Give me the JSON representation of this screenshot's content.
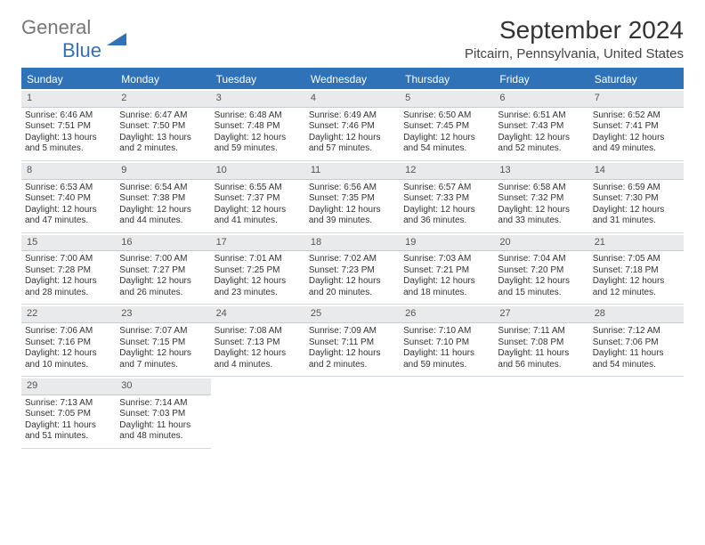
{
  "brand": {
    "line1": "General",
    "line2": "Blue",
    "accent": "#2f72b8",
    "text_color": "#777"
  },
  "title": {
    "month": "September 2024",
    "location": "Pitcairn, Pennsylvania, United States"
  },
  "layout": {
    "weeks": 5,
    "cols": 7
  },
  "colors": {
    "header_bg": "#2f72b8",
    "daynum_bg": "#e8eaec",
    "border": "#c6ccd2"
  },
  "daynames": [
    "Sunday",
    "Monday",
    "Tuesday",
    "Wednesday",
    "Thursday",
    "Friday",
    "Saturday"
  ],
  "days": [
    {
      "n": "1",
      "sunrise": "Sunrise: 6:46 AM",
      "sunset": "Sunset: 7:51 PM",
      "daylight": "Daylight: 13 hours and 5 minutes."
    },
    {
      "n": "2",
      "sunrise": "Sunrise: 6:47 AM",
      "sunset": "Sunset: 7:50 PM",
      "daylight": "Daylight: 13 hours and 2 minutes."
    },
    {
      "n": "3",
      "sunrise": "Sunrise: 6:48 AM",
      "sunset": "Sunset: 7:48 PM",
      "daylight": "Daylight: 12 hours and 59 minutes."
    },
    {
      "n": "4",
      "sunrise": "Sunrise: 6:49 AM",
      "sunset": "Sunset: 7:46 PM",
      "daylight": "Daylight: 12 hours and 57 minutes."
    },
    {
      "n": "5",
      "sunrise": "Sunrise: 6:50 AM",
      "sunset": "Sunset: 7:45 PM",
      "daylight": "Daylight: 12 hours and 54 minutes."
    },
    {
      "n": "6",
      "sunrise": "Sunrise: 6:51 AM",
      "sunset": "Sunset: 7:43 PM",
      "daylight": "Daylight: 12 hours and 52 minutes."
    },
    {
      "n": "7",
      "sunrise": "Sunrise: 6:52 AM",
      "sunset": "Sunset: 7:41 PM",
      "daylight": "Daylight: 12 hours and 49 minutes."
    },
    {
      "n": "8",
      "sunrise": "Sunrise: 6:53 AM",
      "sunset": "Sunset: 7:40 PM",
      "daylight": "Daylight: 12 hours and 47 minutes."
    },
    {
      "n": "9",
      "sunrise": "Sunrise: 6:54 AM",
      "sunset": "Sunset: 7:38 PM",
      "daylight": "Daylight: 12 hours and 44 minutes."
    },
    {
      "n": "10",
      "sunrise": "Sunrise: 6:55 AM",
      "sunset": "Sunset: 7:37 PM",
      "daylight": "Daylight: 12 hours and 41 minutes."
    },
    {
      "n": "11",
      "sunrise": "Sunrise: 6:56 AM",
      "sunset": "Sunset: 7:35 PM",
      "daylight": "Daylight: 12 hours and 39 minutes."
    },
    {
      "n": "12",
      "sunrise": "Sunrise: 6:57 AM",
      "sunset": "Sunset: 7:33 PM",
      "daylight": "Daylight: 12 hours and 36 minutes."
    },
    {
      "n": "13",
      "sunrise": "Sunrise: 6:58 AM",
      "sunset": "Sunset: 7:32 PM",
      "daylight": "Daylight: 12 hours and 33 minutes."
    },
    {
      "n": "14",
      "sunrise": "Sunrise: 6:59 AM",
      "sunset": "Sunset: 7:30 PM",
      "daylight": "Daylight: 12 hours and 31 minutes."
    },
    {
      "n": "15",
      "sunrise": "Sunrise: 7:00 AM",
      "sunset": "Sunset: 7:28 PM",
      "daylight": "Daylight: 12 hours and 28 minutes."
    },
    {
      "n": "16",
      "sunrise": "Sunrise: 7:00 AM",
      "sunset": "Sunset: 7:27 PM",
      "daylight": "Daylight: 12 hours and 26 minutes."
    },
    {
      "n": "17",
      "sunrise": "Sunrise: 7:01 AM",
      "sunset": "Sunset: 7:25 PM",
      "daylight": "Daylight: 12 hours and 23 minutes."
    },
    {
      "n": "18",
      "sunrise": "Sunrise: 7:02 AM",
      "sunset": "Sunset: 7:23 PM",
      "daylight": "Daylight: 12 hours and 20 minutes."
    },
    {
      "n": "19",
      "sunrise": "Sunrise: 7:03 AM",
      "sunset": "Sunset: 7:21 PM",
      "daylight": "Daylight: 12 hours and 18 minutes."
    },
    {
      "n": "20",
      "sunrise": "Sunrise: 7:04 AM",
      "sunset": "Sunset: 7:20 PM",
      "daylight": "Daylight: 12 hours and 15 minutes."
    },
    {
      "n": "21",
      "sunrise": "Sunrise: 7:05 AM",
      "sunset": "Sunset: 7:18 PM",
      "daylight": "Daylight: 12 hours and 12 minutes."
    },
    {
      "n": "22",
      "sunrise": "Sunrise: 7:06 AM",
      "sunset": "Sunset: 7:16 PM",
      "daylight": "Daylight: 12 hours and 10 minutes."
    },
    {
      "n": "23",
      "sunrise": "Sunrise: 7:07 AM",
      "sunset": "Sunset: 7:15 PM",
      "daylight": "Daylight: 12 hours and 7 minutes."
    },
    {
      "n": "24",
      "sunrise": "Sunrise: 7:08 AM",
      "sunset": "Sunset: 7:13 PM",
      "daylight": "Daylight: 12 hours and 4 minutes."
    },
    {
      "n": "25",
      "sunrise": "Sunrise: 7:09 AM",
      "sunset": "Sunset: 7:11 PM",
      "daylight": "Daylight: 12 hours and 2 minutes."
    },
    {
      "n": "26",
      "sunrise": "Sunrise: 7:10 AM",
      "sunset": "Sunset: 7:10 PM",
      "daylight": "Daylight: 11 hours and 59 minutes."
    },
    {
      "n": "27",
      "sunrise": "Sunrise: 7:11 AM",
      "sunset": "Sunset: 7:08 PM",
      "daylight": "Daylight: 11 hours and 56 minutes."
    },
    {
      "n": "28",
      "sunrise": "Sunrise: 7:12 AM",
      "sunset": "Sunset: 7:06 PM",
      "daylight": "Daylight: 11 hours and 54 minutes."
    },
    {
      "n": "29",
      "sunrise": "Sunrise: 7:13 AM",
      "sunset": "Sunset: 7:05 PM",
      "daylight": "Daylight: 11 hours and 51 minutes."
    },
    {
      "n": "30",
      "sunrise": "Sunrise: 7:14 AM",
      "sunset": "Sunset: 7:03 PM",
      "daylight": "Daylight: 11 hours and 48 minutes."
    }
  ]
}
